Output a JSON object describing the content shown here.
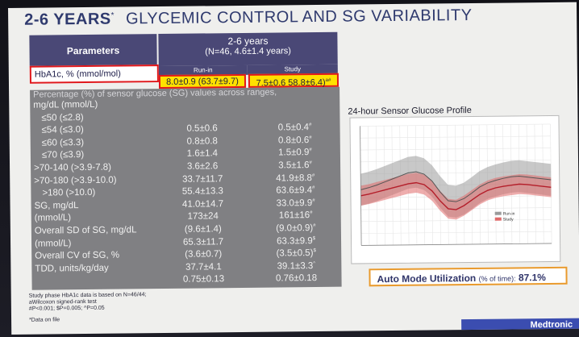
{
  "slide": {
    "title_main": "2-6 YEARS",
    "title_mark": "*",
    "title_rest": "GLYCEMIC CONTROL AND SG VARIABILITY"
  },
  "table": {
    "header_params": "Parameters",
    "header_group_line1": "2-6 years",
    "header_group_line2": "(N=46, 4.6±1.4 years)",
    "header_runin": "Run-in",
    "header_study": "Study",
    "hba1c_label": "HbA1c, % (mmol/mol)",
    "hba1c_runin": "8.0±0.9 (63.7±9.7)",
    "hba1c_study": "7.5±0.6 58.8±6.4)",
    "hba1c_study_mark": "a#",
    "pct_header": "Percentage (%) of sensor glucose (SG) values across ranges,",
    "rows": [
      {
        "param": "mg/dL  (mmol/L)",
        "runin": "",
        "study": "",
        "mark": "",
        "indent": false
      },
      {
        "param": "≤50  (≤2.8)",
        "runin": "",
        "study": "",
        "mark": "",
        "indent": true
      },
      {
        "param": "≤54  (≤3.0)",
        "runin": "0.5±0.6",
        "study": "0.5±0.4",
        "mark": "#",
        "indent": true
      },
      {
        "param": "≤60  (≤3.3)",
        "runin": "0.8±0.8",
        "study": "0.8±0.6",
        "mark": "#",
        "indent": true
      },
      {
        "param": "≤70  (≤3.9)",
        "runin": "1.6±1.4",
        "study": "1.5±0.9",
        "mark": "#",
        "indent": true
      },
      {
        "param": ">70-140 (>3.9-7.8)",
        "runin": "3.6±2.6",
        "study": "3.5±1.6",
        "mark": "#",
        "indent": false
      },
      {
        "param": ">70-180 (>3.9-10.0)",
        "runin": "33.7±11.7",
        "study": "41.9±8.8",
        "mark": "#",
        "indent": false
      },
      {
        "param": ">180 (>10.0)",
        "runin": "55.4±13.3",
        "study": "63.6±9.4",
        "mark": "#",
        "indent": true
      },
      {
        "param": "SG, mg/dL",
        "runin": "41.0±14.7",
        "study": "33.0±9.9",
        "mark": "#",
        "indent": false
      },
      {
        "param": "(mmol/L)",
        "runin": "173±24",
        "study": "161±16",
        "mark": "#",
        "indent": false
      },
      {
        "param": "Overall SD of SG, mg/dL",
        "runin": "(9.6±1.4)",
        "study": "(9.0±0.9)",
        "mark": "#",
        "indent": false
      },
      {
        "param": "(mmol/L)",
        "runin": "65.3±11.7",
        "study": "63.3±9.9",
        "mark": "$",
        "indent": false
      },
      {
        "param": "Overall CV of SG, %",
        "runin": "(3.6±0.7)",
        "study": "(3.5±0.5)",
        "mark": "$",
        "indent": false
      },
      {
        "param": "TDD, units/kg/day",
        "runin": "37.7±4.1",
        "study": "39.1±3.3",
        "mark": "^",
        "indent": false
      },
      {
        "param": "",
        "runin": "0.75±0.13",
        "study": "0.76±0.18",
        "mark": "",
        "indent": false
      }
    ]
  },
  "footnotes": {
    "line1": "Study phase HbA1c data is based on N=46/44;",
    "line2": "aWilcoxon signed-rank test",
    "line3": "#P<0.001; $P=0.005; ^P=0.05",
    "line4": "*Data on file"
  },
  "chart": {
    "title": "24-hour Sensor Glucose Profile",
    "legend_runin": "Run-in",
    "legend_study": "Study",
    "colors": {
      "runin": "#9a9a9a",
      "study": "#e06a6a",
      "study_line": "#b41e2a"
    }
  },
  "chart_data": {
    "type": "area",
    "title": "24-hour Sensor Glucose Profile",
    "xlabel": "",
    "ylabel": "",
    "series": [
      {
        "name": "Run-in",
        "values": [
          172,
          176,
          181,
          187,
          193,
          199,
          205,
          207,
          202,
          188,
          166,
          148,
          146,
          152,
          163,
          175,
          183,
          188,
          192,
          195,
          196,
          194,
          192,
          190,
          188
        ]
      },
      {
        "name": "Study",
        "values": [
          160,
          163,
          167,
          171,
          175,
          179,
          183,
          185,
          181,
          168,
          148,
          132,
          130,
          138,
          149,
          160,
          168,
          173,
          176,
          178,
          180,
          179,
          177,
          175,
          173
        ]
      }
    ]
  },
  "auto_mode": {
    "label": "Auto Mode Utilization",
    "sub": "(% of time):",
    "value": "87.1%"
  },
  "brand": {
    "name": "Medtronic"
  }
}
